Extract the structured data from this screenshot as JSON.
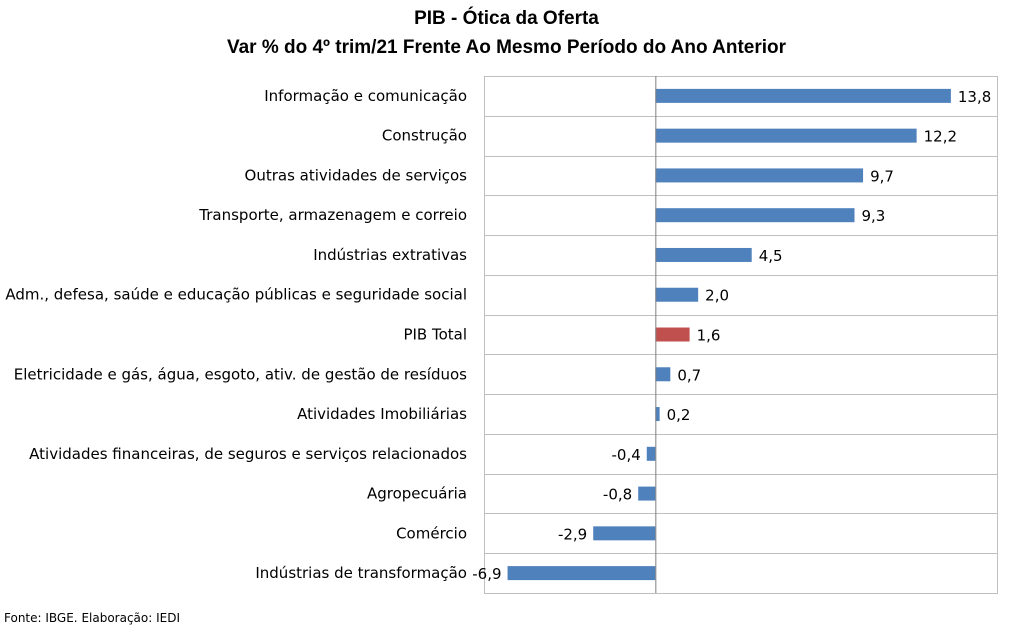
{
  "chart_data": {
    "type": "bar",
    "orientation": "horizontal",
    "title": "PIB - Ótica da Oferta",
    "subtitle": "Var % do 4º trim/21 Frente Ao Mesmo Período do Ano Anterior",
    "categories": [
      "Informação e comunicação",
      "Construção",
      "Outras atividades de serviços",
      "Transporte, armazenagem e correio",
      "Indústrias extrativas",
      "Adm., defesa, saúde e educação públicas e seguridade social",
      "PIB Total",
      "Eletricidade e gás, água, esgoto, ativ. de gestão de resíduos",
      "Atividades Imobiliárias",
      "Atividades financeiras, de seguros e serviços relacionados",
      "Agropecuária",
      "Comércio",
      "Indústrias de transformação"
    ],
    "values": [
      13.8,
      12.2,
      9.7,
      9.3,
      4.5,
      2.0,
      1.6,
      0.7,
      0.2,
      -0.4,
      -0.8,
      -2.9,
      -6.9
    ],
    "value_labels": [
      "13,8",
      "12,2",
      "9,7",
      "9,3",
      "4,5",
      "2,0",
      "1,6",
      "0,7",
      "0,2",
      "-0,4",
      "-0,8",
      "-2,9",
      "-6,9"
    ],
    "colors": {
      "default": "#4f81bd",
      "highlight": "#c0504d",
      "highlight_category": "PIB Total",
      "gridline": "#bfbfbf",
      "axis": "#7f7f7f"
    },
    "xlim": [
      -8,
      16
    ],
    "grid": true,
    "legend": "none"
  },
  "footer": {
    "source": "Fonte: IBGE. Elaboração: IEDI"
  }
}
